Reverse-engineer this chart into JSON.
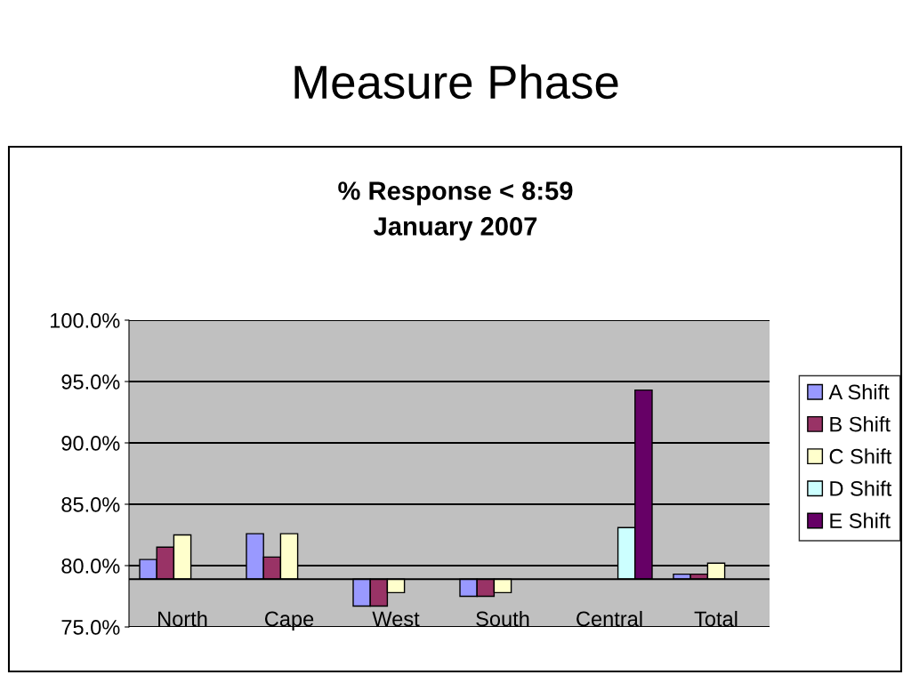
{
  "chart_data": {
    "type": "bar",
    "title": "Measure Phase",
    "subtitle": "% Response < 8:59\nJanuary 2007",
    "categories": [
      "North",
      "Cape",
      "West",
      "South",
      "Central",
      "Total"
    ],
    "series": [
      {
        "name": "A Shift",
        "color": "#9999ff",
        "base": [
          78.9,
          78.9,
          78.9,
          78.9,
          null,
          78.9
        ],
        "values": [
          1.6,
          3.7,
          -2.2,
          -1.4,
          null,
          0.4
        ]
      },
      {
        "name": "B Shift",
        "color": "#993366",
        "base": [
          78.9,
          78.9,
          78.9,
          78.9,
          null,
          78.9
        ],
        "values": [
          2.6,
          1.8,
          -2.2,
          -1.4,
          null,
          0.4
        ]
      },
      {
        "name": "C Shift",
        "color": "#ffffcc",
        "base": [
          78.9,
          78.9,
          78.9,
          78.9,
          null,
          78.9
        ],
        "values": [
          3.6,
          3.7,
          -1.1,
          -1.1,
          null,
          1.3
        ]
      },
      {
        "name": "D Shift",
        "color": "#ccffff",
        "base": [
          null,
          null,
          null,
          null,
          78.9,
          null
        ],
        "values": [
          null,
          null,
          null,
          null,
          4.2,
          null
        ]
      },
      {
        "name": "E Shift",
        "color": "#660066",
        "base": [
          null,
          null,
          null,
          null,
          78.9,
          null
        ],
        "values": [
          null,
          null,
          null,
          null,
          15.4,
          null
        ]
      }
    ],
    "ylim": [
      75,
      100
    ],
    "yticks": [
      {
        "value": 75,
        "label": "75.0%"
      },
      {
        "value": 80,
        "label": "80.0%"
      },
      {
        "value": 85,
        "label": "85.0%"
      },
      {
        "value": 90,
        "label": "90.0%"
      },
      {
        "value": 95,
        "label": "95.0%"
      },
      {
        "value": 100,
        "label": "100.0%"
      }
    ],
    "ref_lines": [
      {
        "axis": "y",
        "value": 78.9,
        "color": "#000000"
      }
    ],
    "grid": "y",
    "legend": "right"
  }
}
